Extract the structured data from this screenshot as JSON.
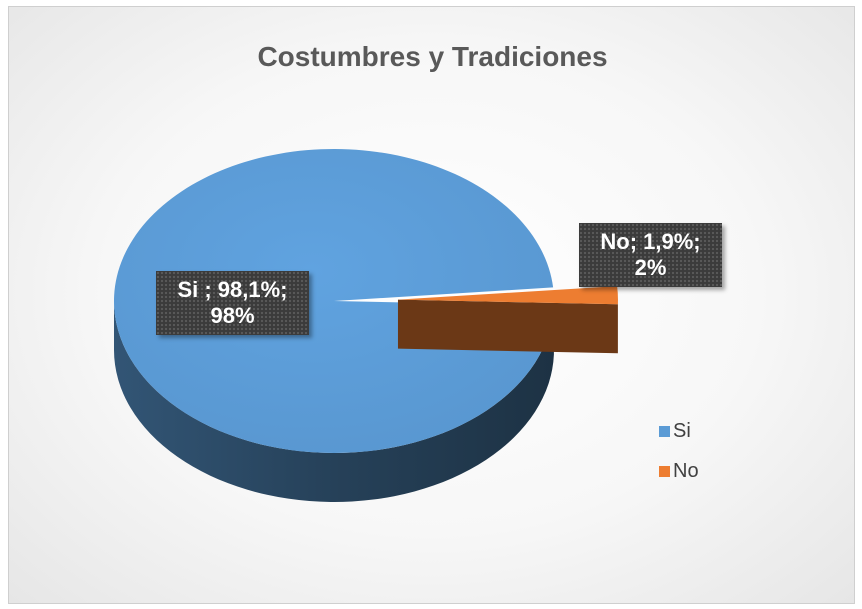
{
  "chart_data": {
    "type": "pie",
    "style": "3d",
    "title": "Costumbres y Tradiciones",
    "categories": [
      "Si",
      "No"
    ],
    "values": [
      98.1,
      1.9
    ],
    "data_labels": [
      "Si ; 98,1%;\n98%",
      "No; 1,9%;\n2%"
    ],
    "colors": {
      "Si": "#5b9bd5",
      "No": "#ed7d31"
    },
    "legend": "right"
  },
  "legend": {
    "items": [
      {
        "label": "Si",
        "color": "#5b9bd5"
      },
      {
        "label": "No",
        "color": "#ed7d31"
      }
    ]
  }
}
